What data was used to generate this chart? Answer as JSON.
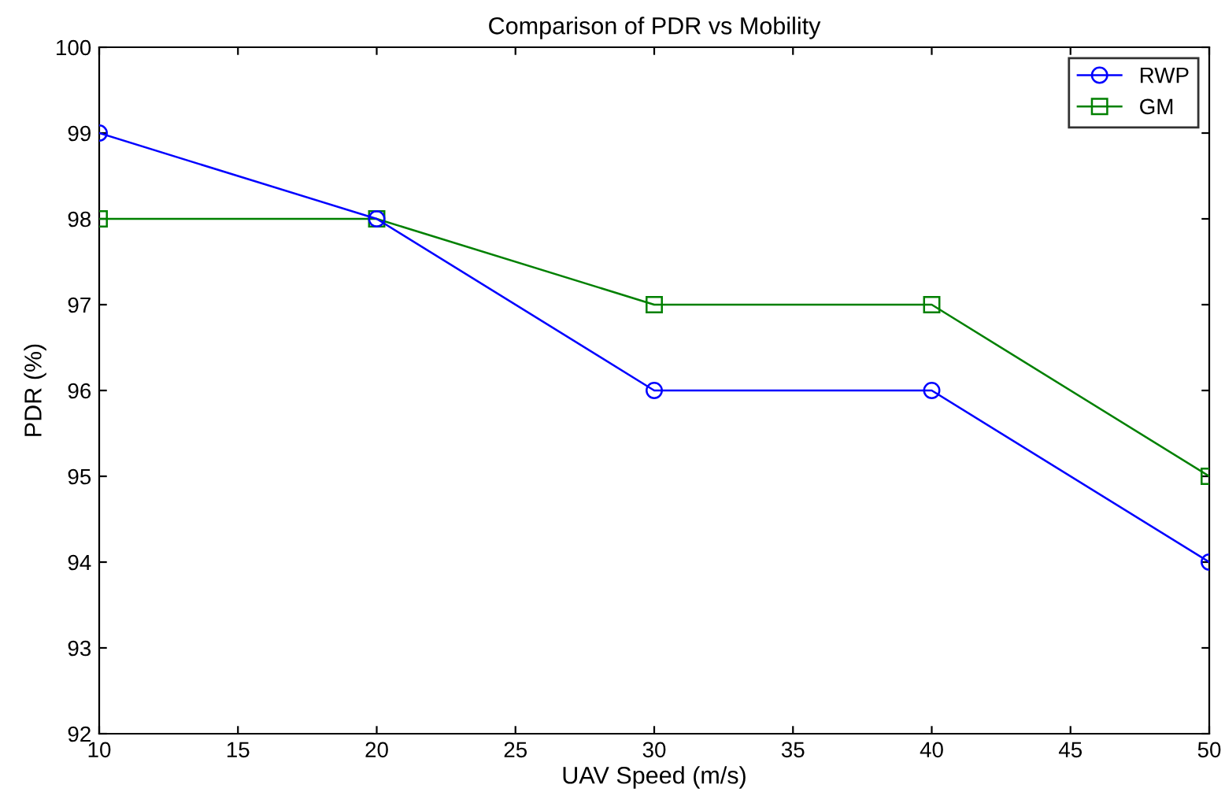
{
  "chart_data": {
    "type": "line",
    "title": "Comparison of PDR vs Mobility",
    "xlabel": "UAV Speed (m/s)",
    "ylabel": "PDR (%)",
    "x": [
      10,
      20,
      30,
      40,
      50
    ],
    "series": [
      {
        "name": "RWP",
        "color": "#0000ff",
        "values": [
          99,
          98,
          96,
          96,
          94
        ],
        "marker": "circle"
      },
      {
        "name": "GM",
        "color": "#008000",
        "values": [
          98,
          98,
          97,
          97,
          95
        ],
        "marker": "square"
      }
    ],
    "xlim": [
      10,
      50
    ],
    "xticks": [
      10,
      15,
      20,
      25,
      30,
      35,
      40,
      45,
      50
    ],
    "ylim": [
      92,
      100
    ],
    "yticks": [
      92,
      93,
      94,
      95,
      96,
      97,
      98,
      99,
      100
    ],
    "legend": "top right",
    "grid": false,
    "line_style": "solid"
  }
}
